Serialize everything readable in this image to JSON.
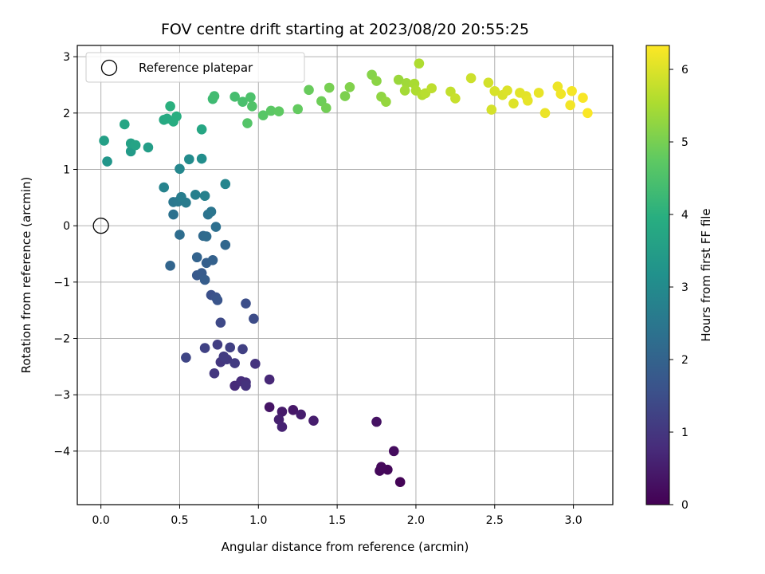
{
  "chart_data": {
    "type": "scatter",
    "title": "FOV centre drift starting at 2023/08/20 20:55:25",
    "xlabel": "Angular distance from reference (arcmin)",
    "ylabel": "Rotation from reference (arcmin)",
    "xlim": [
      -0.15,
      3.25
    ],
    "ylim": [
      -4.95,
      3.2
    ],
    "xticks": [
      0.0,
      0.5,
      1.0,
      1.5,
      2.0,
      2.5,
      3.0
    ],
    "xtick_labels": [
      "0.0",
      "0.5",
      "1.0",
      "1.5",
      "2.0",
      "2.5",
      "3.0"
    ],
    "yticks": [
      -4,
      -3,
      -2,
      -1,
      0,
      1,
      2,
      3
    ],
    "ytick_labels": [
      "−4",
      "−3",
      "−2",
      "−1",
      "0",
      "1",
      "2",
      "3"
    ],
    "grid": true,
    "legend": {
      "position": "top-left",
      "label": "Reference platepar"
    },
    "reference_point": {
      "x": 0.0,
      "y": 0.0
    },
    "colorbar": {
      "label": "Hours from first FF file",
      "colormap": "viridis",
      "range": [
        0,
        6.33
      ],
      "ticks": [
        0,
        1,
        2,
        3,
        4,
        5,
        6
      ],
      "tick_labels": [
        "0",
        "1",
        "2",
        "3",
        "4",
        "5",
        "6"
      ]
    },
    "points": [
      {
        "x": 1.9,
        "y": -4.55,
        "c": 0.05
      },
      {
        "x": 1.82,
        "y": -4.33,
        "c": 0.1
      },
      {
        "x": 1.77,
        "y": -4.35,
        "c": 0.12
      },
      {
        "x": 1.78,
        "y": -4.28,
        "c": 0.15
      },
      {
        "x": 1.86,
        "y": -4.0,
        "c": 0.2
      },
      {
        "x": 1.75,
        "y": -3.48,
        "c": 0.3
      },
      {
        "x": 1.07,
        "y": -3.22,
        "c": 0.35
      },
      {
        "x": 1.22,
        "y": -3.27,
        "c": 0.4
      },
      {
        "x": 1.15,
        "y": -3.3,
        "c": 0.45
      },
      {
        "x": 1.27,
        "y": -3.35,
        "c": 0.5
      },
      {
        "x": 1.35,
        "y": -3.46,
        "c": 0.5
      },
      {
        "x": 1.13,
        "y": -3.44,
        "c": 0.55
      },
      {
        "x": 1.15,
        "y": -3.57,
        "c": 0.6
      },
      {
        "x": 1.07,
        "y": -2.73,
        "c": 0.7
      },
      {
        "x": 0.85,
        "y": -2.84,
        "c": 0.75
      },
      {
        "x": 0.89,
        "y": -2.76,
        "c": 0.8
      },
      {
        "x": 0.92,
        "y": -2.78,
        "c": 0.85
      },
      {
        "x": 0.92,
        "y": -2.84,
        "c": 0.9
      },
      {
        "x": 0.98,
        "y": -2.45,
        "c": 0.95
      },
      {
        "x": 0.72,
        "y": -2.62,
        "c": 1.0
      },
      {
        "x": 0.76,
        "y": -2.42,
        "c": 1.0
      },
      {
        "x": 0.8,
        "y": -2.37,
        "c": 1.05
      },
      {
        "x": 0.85,
        "y": -2.44,
        "c": 1.1
      },
      {
        "x": 0.78,
        "y": -2.32,
        "c": 1.1
      },
      {
        "x": 0.74,
        "y": -2.11,
        "c": 1.15
      },
      {
        "x": 0.82,
        "y": -2.16,
        "c": 1.2
      },
      {
        "x": 0.9,
        "y": -2.19,
        "c": 1.2
      },
      {
        "x": 0.66,
        "y": -2.17,
        "c": 1.25
      },
      {
        "x": 0.54,
        "y": -2.34,
        "c": 1.3
      },
      {
        "x": 0.76,
        "y": -1.72,
        "c": 1.4
      },
      {
        "x": 0.97,
        "y": -1.65,
        "c": 1.45
      },
      {
        "x": 0.92,
        "y": -1.38,
        "c": 1.5
      },
      {
        "x": 0.7,
        "y": -1.23,
        "c": 1.55
      },
      {
        "x": 0.73,
        "y": -1.27,
        "c": 1.6
      },
      {
        "x": 0.74,
        "y": -1.32,
        "c": 1.65
      },
      {
        "x": 0.61,
        "y": -0.88,
        "c": 1.75
      },
      {
        "x": 0.64,
        "y": -0.84,
        "c": 1.8
      },
      {
        "x": 0.66,
        "y": -0.96,
        "c": 1.85
      },
      {
        "x": 0.67,
        "y": -0.66,
        "c": 1.9
      },
      {
        "x": 0.71,
        "y": -0.61,
        "c": 1.95
      },
      {
        "x": 0.61,
        "y": -0.56,
        "c": 2.0
      },
      {
        "x": 0.44,
        "y": -0.71,
        "c": 2.05
      },
      {
        "x": 0.79,
        "y": -0.34,
        "c": 2.1
      },
      {
        "x": 0.65,
        "y": -0.18,
        "c": 2.15
      },
      {
        "x": 0.67,
        "y": -0.19,
        "c": 2.2
      },
      {
        "x": 0.5,
        "y": -0.16,
        "c": 2.25
      },
      {
        "x": 0.73,
        "y": -0.02,
        "c": 2.3
      },
      {
        "x": 0.46,
        "y": 0.2,
        "c": 2.35
      },
      {
        "x": 0.68,
        "y": 0.2,
        "c": 2.4
      },
      {
        "x": 0.7,
        "y": 0.25,
        "c": 2.45
      },
      {
        "x": 0.46,
        "y": 0.42,
        "c": 2.5
      },
      {
        "x": 0.49,
        "y": 0.43,
        "c": 2.55
      },
      {
        "x": 0.54,
        "y": 0.41,
        "c": 2.6
      },
      {
        "x": 0.51,
        "y": 0.51,
        "c": 2.65
      },
      {
        "x": 0.6,
        "y": 0.55,
        "c": 2.7
      },
      {
        "x": 0.66,
        "y": 0.53,
        "c": 2.75
      },
      {
        "x": 0.4,
        "y": 0.68,
        "c": 2.8
      },
      {
        "x": 0.79,
        "y": 0.74,
        "c": 2.85
      },
      {
        "x": 0.5,
        "y": 1.01,
        "c": 2.9
      },
      {
        "x": 0.56,
        "y": 1.18,
        "c": 3.0
      },
      {
        "x": 0.64,
        "y": 1.19,
        "c": 3.1
      },
      {
        "x": 0.04,
        "y": 1.14,
        "c": 3.3
      },
      {
        "x": 0.19,
        "y": 1.32,
        "c": 3.4
      },
      {
        "x": 0.3,
        "y": 1.39,
        "c": 3.5
      },
      {
        "x": 0.02,
        "y": 1.51,
        "c": 3.55
      },
      {
        "x": 0.19,
        "y": 1.46,
        "c": 3.6
      },
      {
        "x": 0.22,
        "y": 1.43,
        "c": 3.65
      },
      {
        "x": 0.15,
        "y": 1.8,
        "c": 3.7
      },
      {
        "x": 0.64,
        "y": 1.71,
        "c": 3.75
      },
      {
        "x": 0.4,
        "y": 1.88,
        "c": 3.8
      },
      {
        "x": 0.42,
        "y": 1.9,
        "c": 3.85
      },
      {
        "x": 0.46,
        "y": 1.85,
        "c": 3.9
      },
      {
        "x": 0.48,
        "y": 1.94,
        "c": 3.95
      },
      {
        "x": 0.44,
        "y": 2.12,
        "c": 4.0
      },
      {
        "x": 0.71,
        "y": 2.25,
        "c": 4.3
      },
      {
        "x": 0.72,
        "y": 2.3,
        "c": 4.35
      },
      {
        "x": 0.85,
        "y": 2.29,
        "c": 4.4
      },
      {
        "x": 0.9,
        "y": 2.2,
        "c": 4.45
      },
      {
        "x": 0.95,
        "y": 2.28,
        "c": 4.5
      },
      {
        "x": 0.96,
        "y": 2.12,
        "c": 4.55
      },
      {
        "x": 0.93,
        "y": 1.82,
        "c": 4.6
      },
      {
        "x": 1.03,
        "y": 1.96,
        "c": 4.65
      },
      {
        "x": 1.08,
        "y": 2.04,
        "c": 4.7
      },
      {
        "x": 1.13,
        "y": 2.03,
        "c": 4.75
      },
      {
        "x": 1.25,
        "y": 2.07,
        "c": 4.8
      },
      {
        "x": 1.32,
        "y": 2.41,
        "c": 4.85
      },
      {
        "x": 1.4,
        "y": 2.21,
        "c": 4.9
      },
      {
        "x": 1.43,
        "y": 2.09,
        "c": 4.95
      },
      {
        "x": 1.45,
        "y": 2.45,
        "c": 5.0
      },
      {
        "x": 1.55,
        "y": 2.3,
        "c": 5.05
      },
      {
        "x": 1.58,
        "y": 2.46,
        "c": 5.1
      },
      {
        "x": 1.72,
        "y": 2.68,
        "c": 5.15
      },
      {
        "x": 1.75,
        "y": 2.57,
        "c": 5.2
      },
      {
        "x": 1.78,
        "y": 2.29,
        "c": 5.25
      },
      {
        "x": 1.81,
        "y": 2.2,
        "c": 5.3
      },
      {
        "x": 1.89,
        "y": 2.59,
        "c": 5.35
      },
      {
        "x": 1.94,
        "y": 2.53,
        "c": 5.4
      },
      {
        "x": 1.93,
        "y": 2.4,
        "c": 5.45
      },
      {
        "x": 1.99,
        "y": 2.52,
        "c": 5.5
      },
      {
        "x": 2.0,
        "y": 2.4,
        "c": 5.55
      },
      {
        "x": 2.02,
        "y": 2.88,
        "c": 5.55
      },
      {
        "x": 2.04,
        "y": 2.32,
        "c": 5.6
      },
      {
        "x": 2.06,
        "y": 2.35,
        "c": 5.65
      },
      {
        "x": 2.1,
        "y": 2.44,
        "c": 5.7
      },
      {
        "x": 2.22,
        "y": 2.38,
        "c": 5.75
      },
      {
        "x": 2.25,
        "y": 2.26,
        "c": 5.8
      },
      {
        "x": 2.35,
        "y": 2.62,
        "c": 5.85
      },
      {
        "x": 2.46,
        "y": 2.54,
        "c": 5.9
      },
      {
        "x": 2.48,
        "y": 2.06,
        "c": 5.92
      },
      {
        "x": 2.5,
        "y": 2.39,
        "c": 5.95
      },
      {
        "x": 2.55,
        "y": 2.32,
        "c": 5.97
      },
      {
        "x": 2.58,
        "y": 2.4,
        "c": 6.0
      },
      {
        "x": 2.62,
        "y": 2.17,
        "c": 6.02
      },
      {
        "x": 2.66,
        "y": 2.36,
        "c": 6.05
      },
      {
        "x": 2.7,
        "y": 2.3,
        "c": 6.07
      },
      {
        "x": 2.71,
        "y": 2.22,
        "c": 6.1
      },
      {
        "x": 2.78,
        "y": 2.36,
        "c": 6.12
      },
      {
        "x": 2.82,
        "y": 2.0,
        "c": 6.15
      },
      {
        "x": 2.9,
        "y": 2.47,
        "c": 6.17
      },
      {
        "x": 2.92,
        "y": 2.34,
        "c": 6.2
      },
      {
        "x": 2.98,
        "y": 2.14,
        "c": 6.22
      },
      {
        "x": 2.99,
        "y": 2.39,
        "c": 6.25
      },
      {
        "x": 3.06,
        "y": 2.27,
        "c": 6.28
      },
      {
        "x": 3.09,
        "y": 2.0,
        "c": 6.3
      }
    ]
  }
}
